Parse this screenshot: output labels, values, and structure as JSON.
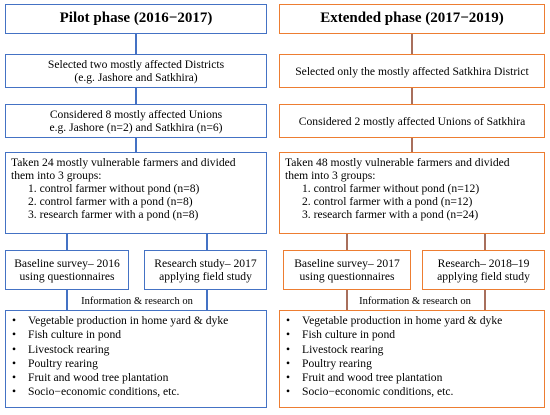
{
  "colors": {
    "left_border": "#4472C4",
    "right_border": "#ED7D31",
    "left_connector": "#4472C4",
    "right_connector": "#A86F5C"
  },
  "pilot": {
    "title": "Pilot phase (2016−2017)",
    "districts": [
      "Selected two mostly affected Districts",
      "(e.g. Jashore and Satkhira)"
    ],
    "unions": [
      "Considered 8 mostly affected Unions",
      "e.g. Jashore (n=2) and Satkhira (n=6)"
    ],
    "farmers": {
      "intro": [
        "Taken 24 mostly vulnerable farmers and divided",
        "them into 3 groups:"
      ],
      "groups": [
        "1. control farmer without pond (n=8)",
        "2. control farmer with a pond (n=8)",
        "3. research farmer with a pond (n=8)"
      ]
    },
    "baseline": [
      "Baseline survey– 2016",
      "using questionnaires"
    ],
    "research": [
      "Research study– 2017",
      "applying field study"
    ],
    "info_label": "Information & research on",
    "topics": [
      "Vegetable production in home yard & dyke",
      "Fish culture in pond",
      "Livestock rearing",
      "Poultry rearing",
      "Fruit and wood tree plantation",
      "Socio−economic conditions, etc."
    ]
  },
  "extended": {
    "title": "Extended phase (2017−2019)",
    "district": [
      "Selected only the mostly affected Satkhira District"
    ],
    "unions": [
      "Considered 2 mostly affected Unions of Satkhira"
    ],
    "farmers": {
      "intro": [
        "Taken 48 mostly vulnerable farmers and divided",
        "them into 3 groups:"
      ],
      "groups": [
        "1. control farmer without pond (n=12)",
        "2. control farmer with a pond (n=12)",
        "3. research farmer with a pond (n=24)"
      ]
    },
    "baseline": [
      "Baseline survey– 2017",
      "using questionnaires"
    ],
    "research": [
      "Research– 2018–19",
      "applying field study"
    ],
    "info_label": "Information & research on",
    "topics": [
      "Vegetable production in home yard & dyke",
      "Fish culture in pond",
      "Livestock rearing",
      "Poultry rearing",
      "Fruit and wood tree plantation",
      "Socio−economic conditions, etc."
    ]
  }
}
